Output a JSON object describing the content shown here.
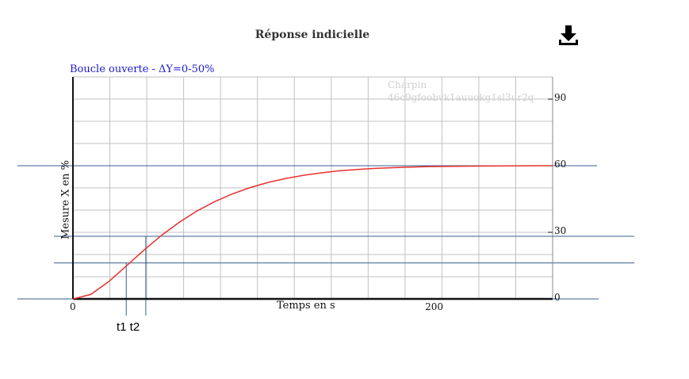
{
  "chart_data": {
    "type": "line",
    "title": "Réponse indicielle",
    "subtitle": "Boucle ouverte - ΔY=0-50%",
    "xlabel": "Temps en s",
    "ylabel": "Mesure X en %",
    "xlim": [
      0,
      270
    ],
    "ylim": [
      0,
      100
    ],
    "grid": true,
    "x_ticks": [
      {
        "value": 0,
        "label": "0"
      },
      {
        "value": 200,
        "label": "200"
      }
    ],
    "y_ticks": [
      {
        "value": 0,
        "label": "0"
      },
      {
        "value": 30,
        "label": "30"
      },
      {
        "value": 60,
        "label": "60"
      },
      {
        "value": 90,
        "label": "90"
      }
    ],
    "series": [
      {
        "color": "#e83030",
        "x": [
          0,
          10,
          20,
          30,
          40,
          50,
          60,
          70,
          80,
          90,
          100,
          110,
          120,
          130,
          140,
          150,
          160,
          170,
          180,
          190,
          200,
          220,
          240,
          260,
          270
        ],
        "y": [
          0,
          2,
          7.7,
          14.8,
          22,
          28.7,
          34.6,
          39.7,
          43.9,
          47.4,
          50.2,
          52.5,
          54.3,
          55.7,
          56.8,
          57.7,
          58.3,
          58.8,
          59.1,
          59.4,
          59.6,
          59.8,
          59.9,
          60,
          60
        ]
      }
    ],
    "reference_lines": {
      "horizontal": [
        60,
        28.2,
        16.2,
        0
      ],
      "vertical": [
        30,
        41
      ]
    },
    "annotations": [
      "t1 t2"
    ],
    "watermark": [
      "Charpin",
      "46c9gfoobvk1auuokg1sl3ur2q"
    ]
  },
  "icons": {
    "download": "download-icon"
  },
  "colors": {
    "curve": "#e83030",
    "reference": "#3a5f8f",
    "grid": "#c0c0c0",
    "subtitle": "#1a1acc"
  }
}
